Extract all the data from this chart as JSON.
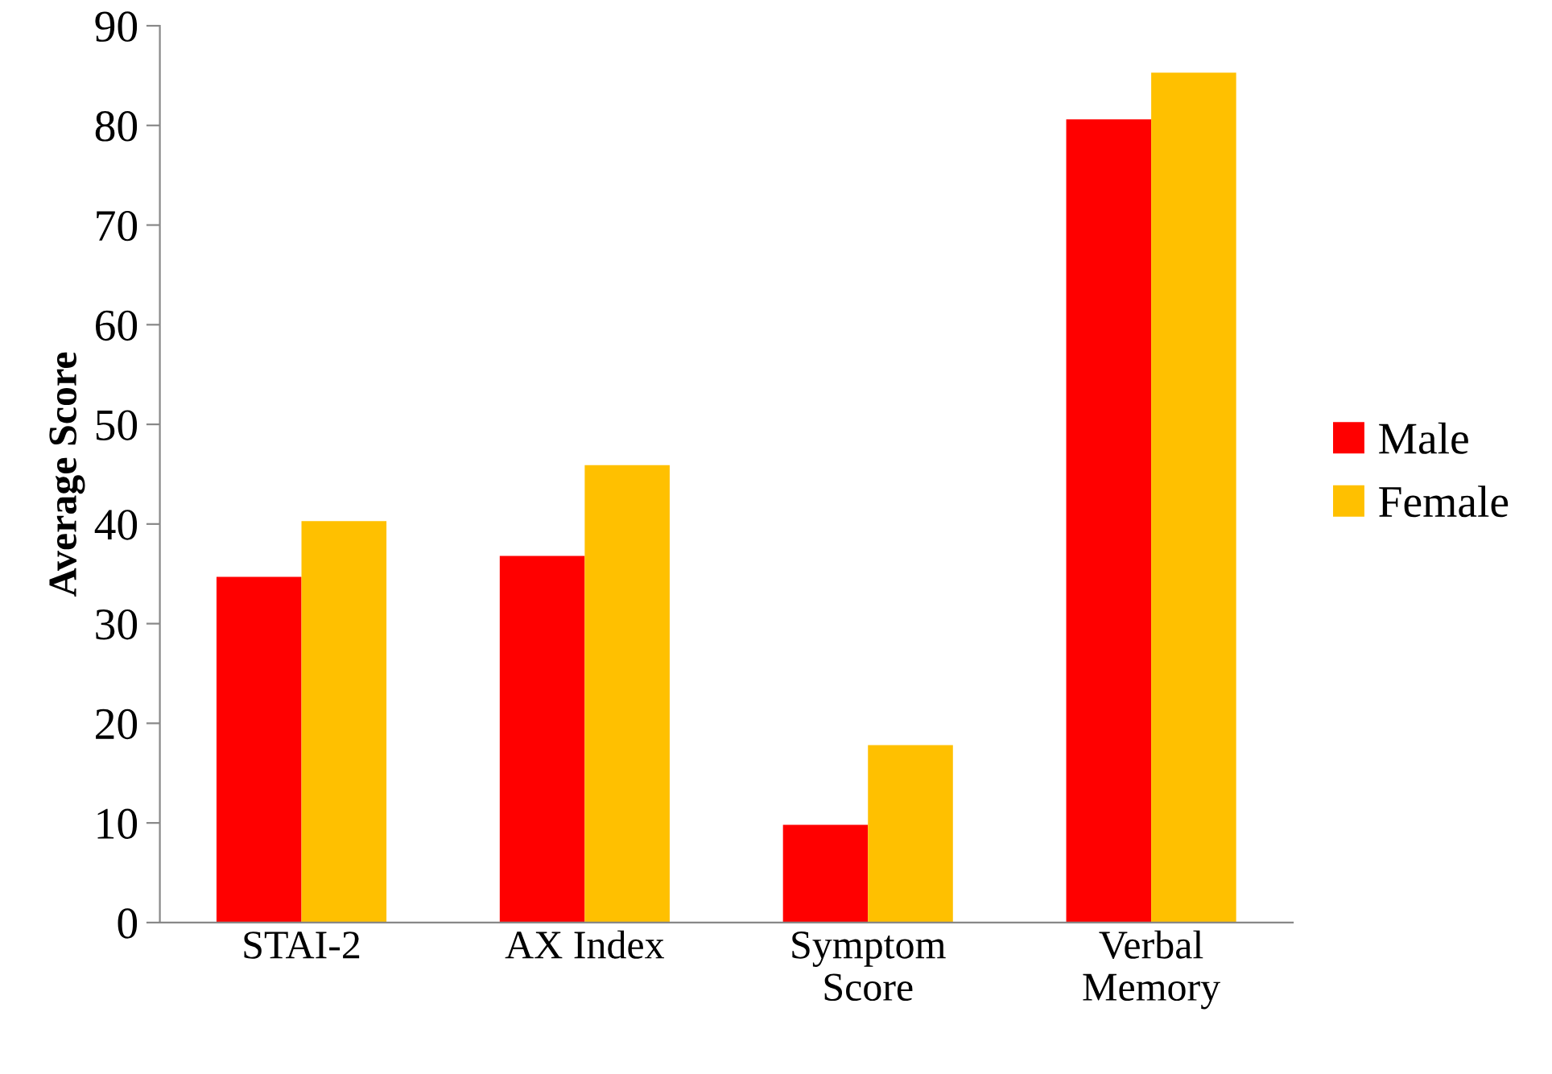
{
  "chart_data": {
    "type": "bar",
    "ylabel": "Average Score",
    "categories": [
      "STAI-2",
      "AX Index",
      "Symptom\nScore",
      "Verbal\nMemory"
    ],
    "series": [
      {
        "name": "Male",
        "color": "#ff0000",
        "values": [
          34.7,
          36.8,
          9.8,
          80.6
        ]
      },
      {
        "name": "Female",
        "color": "#ffc000",
        "values": [
          40.3,
          45.9,
          17.8,
          85.3
        ]
      }
    ],
    "ylim": [
      0,
      90
    ],
    "yticks": [
      0,
      10,
      20,
      30,
      40,
      50,
      60,
      70,
      80,
      90
    ],
    "grid": false,
    "legend": "right"
  }
}
